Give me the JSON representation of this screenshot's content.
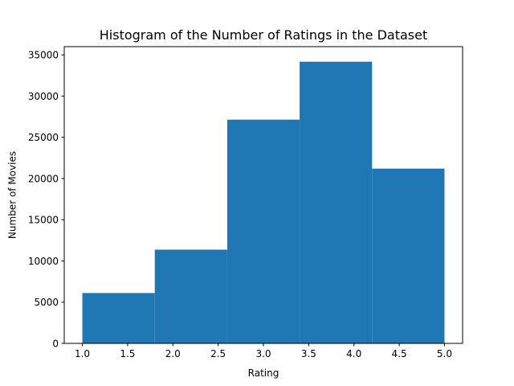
{
  "chart_data": {
    "type": "bar",
    "title": "Histogram of the Number of Ratings in the Dataset",
    "xlabel": "Rating",
    "ylabel": "Number of Movies",
    "bins": [
      {
        "start": 1.0,
        "end": 1.8,
        "value": 6110
      },
      {
        "start": 1.8,
        "end": 2.6,
        "value": 11370
      },
      {
        "start": 2.6,
        "end": 3.4,
        "value": 27145
      },
      {
        "start": 3.4,
        "end": 4.2,
        "value": 34174
      },
      {
        "start": 4.2,
        "end": 5.0,
        "value": 21201
      }
    ],
    "xlim": [
      0.8,
      5.2
    ],
    "ylim": [
      0,
      36000
    ],
    "xticks": [
      "1.0",
      "1.5",
      "2.0",
      "2.5",
      "3.0",
      "3.5",
      "4.0",
      "4.5",
      "5.0"
    ],
    "xtick_values": [
      1.0,
      1.5,
      2.0,
      2.5,
      3.0,
      3.5,
      4.0,
      4.5,
      5.0
    ],
    "yticks": [
      "0",
      "5000",
      "10000",
      "15000",
      "20000",
      "25000",
      "30000",
      "35000"
    ],
    "ytick_values": [
      0,
      5000,
      10000,
      15000,
      20000,
      25000,
      30000,
      35000
    ],
    "bar_color": "#1f77b4",
    "grid": false
  }
}
